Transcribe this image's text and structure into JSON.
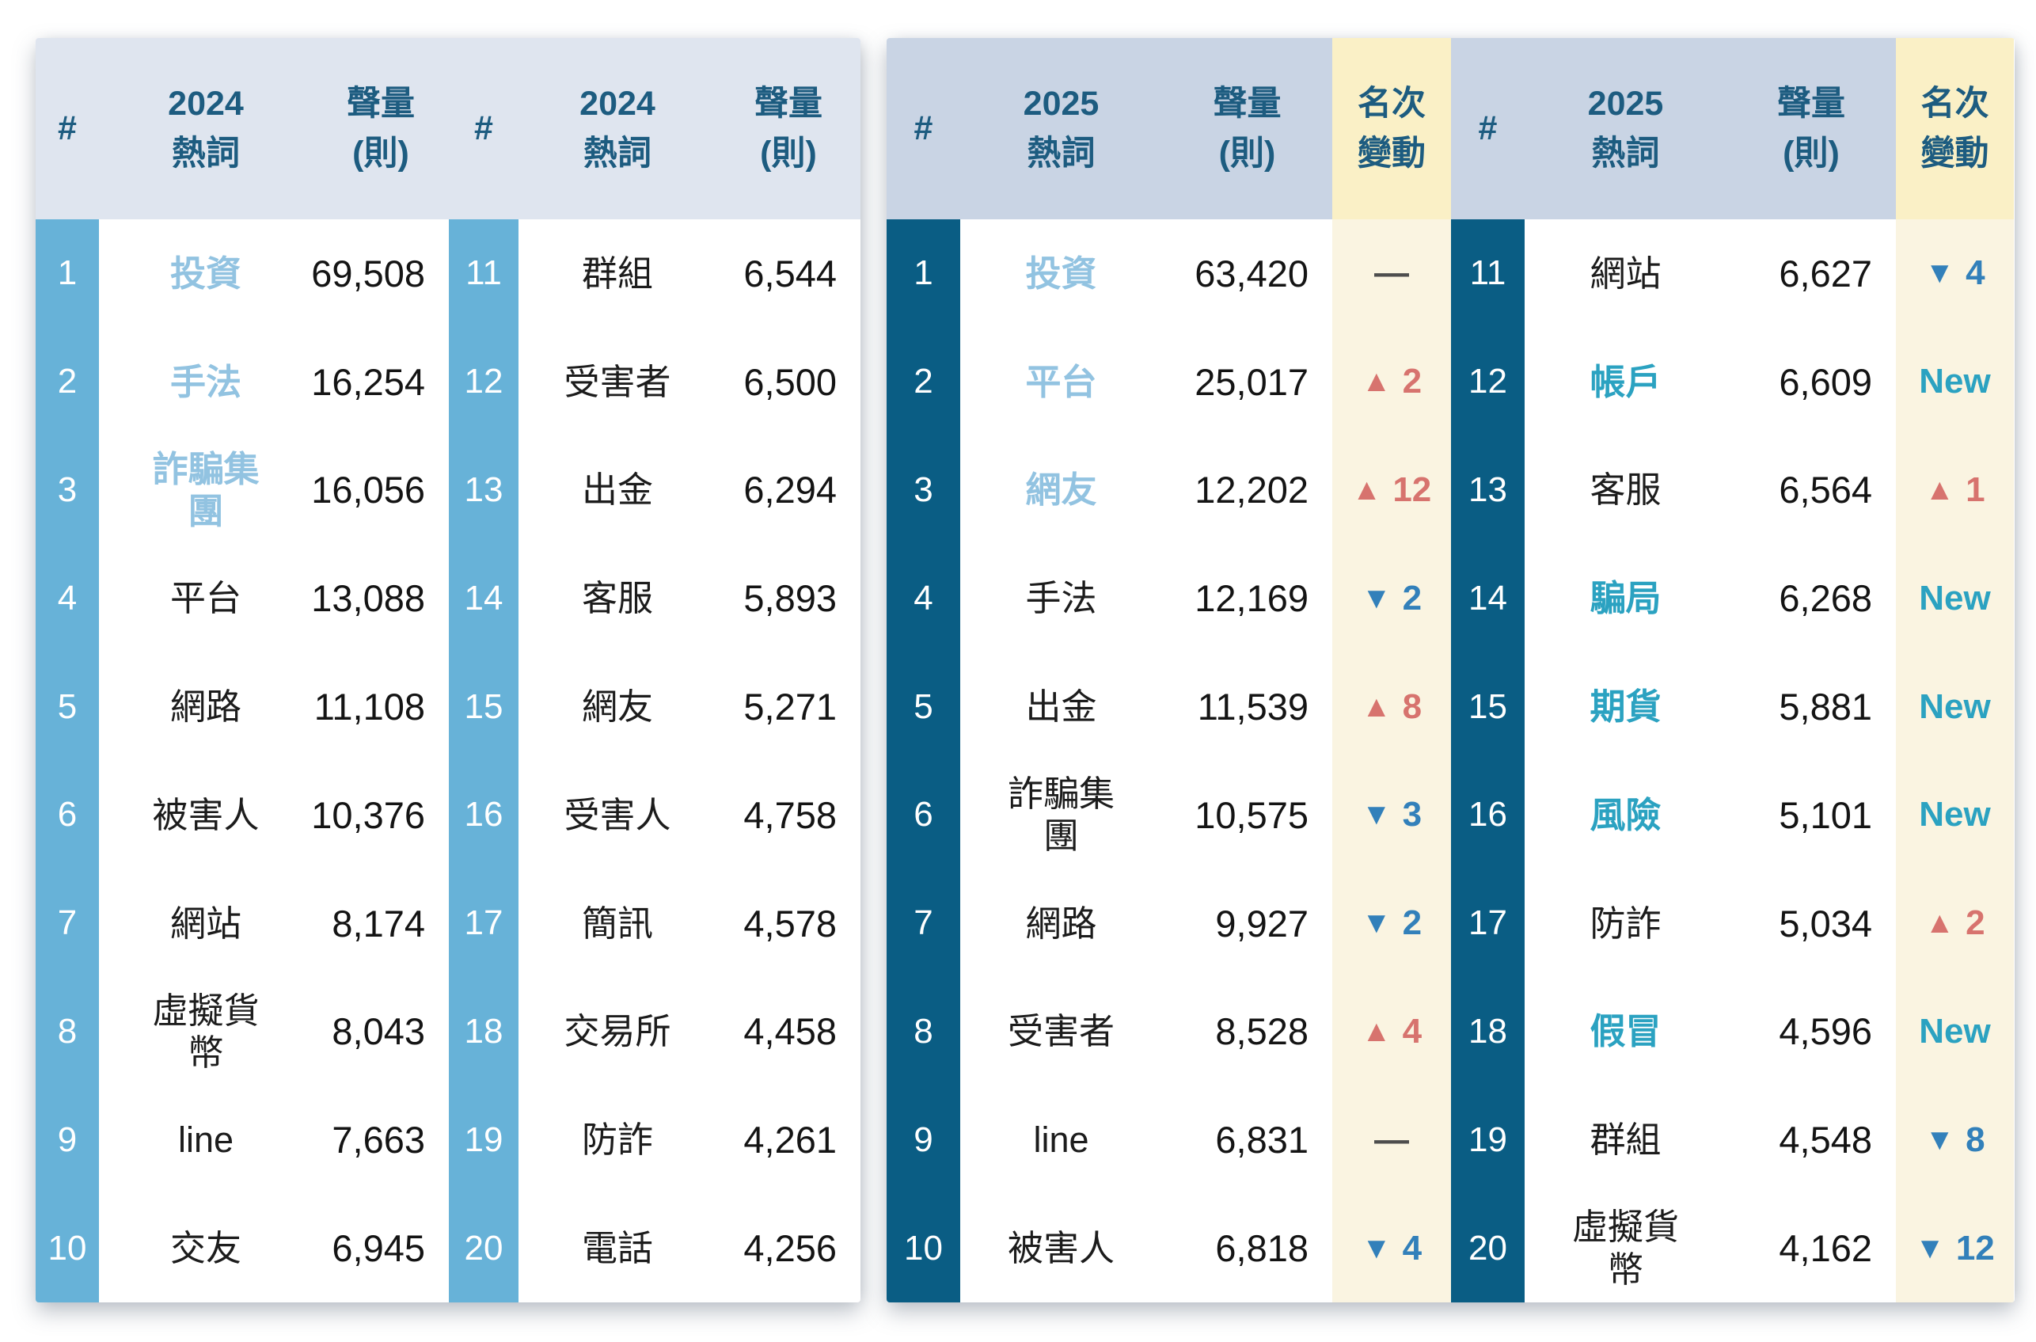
{
  "tables": {
    "left": {
      "header": {
        "rank": "#",
        "word": "2024\n熱詞",
        "volume": "聲量\n(則)"
      },
      "rows_a": [
        {
          "rank": 1,
          "word": "投資",
          "volume": "69,508",
          "hl": "hl-blue"
        },
        {
          "rank": 2,
          "word": "手法",
          "volume": "16,254",
          "hl": "hl-blue"
        },
        {
          "rank": 3,
          "word": "詐騙集團",
          "volume": "16,056",
          "hl": "hl-blue"
        },
        {
          "rank": 4,
          "word": "平台",
          "volume": "13,088"
        },
        {
          "rank": 5,
          "word": "網路",
          "volume": "11,108"
        },
        {
          "rank": 6,
          "word": "被害人",
          "volume": "10,376"
        },
        {
          "rank": 7,
          "word": "網站",
          "volume": "8,174"
        },
        {
          "rank": 8,
          "word": "虛擬貨幣",
          "volume": "8,043"
        },
        {
          "rank": 9,
          "word": "line",
          "volume": "7,663"
        },
        {
          "rank": 10,
          "word": "交友",
          "volume": "6,945"
        }
      ],
      "rows_b": [
        {
          "rank": 11,
          "word": "群組",
          "volume": "6,544"
        },
        {
          "rank": 12,
          "word": "受害者",
          "volume": "6,500"
        },
        {
          "rank": 13,
          "word": "出金",
          "volume": "6,294"
        },
        {
          "rank": 14,
          "word": "客服",
          "volume": "5,893"
        },
        {
          "rank": 15,
          "word": "網友",
          "volume": "5,271"
        },
        {
          "rank": 16,
          "word": "受害人",
          "volume": "4,758"
        },
        {
          "rank": 17,
          "word": "簡訊",
          "volume": "4,578"
        },
        {
          "rank": 18,
          "word": "交易所",
          "volume": "4,458"
        },
        {
          "rank": 19,
          "word": "防詐",
          "volume": "4,261"
        },
        {
          "rank": 20,
          "word": "電話",
          "volume": "4,256"
        }
      ]
    },
    "right": {
      "header": {
        "rank": "#",
        "word": "2025\n熱詞",
        "volume": "聲量\n(則)",
        "change": "名次\n變動"
      },
      "rows_a": [
        {
          "rank": 1,
          "word": "投資",
          "volume": "63,420",
          "hl": "hl-blue",
          "change": {
            "dir": "same",
            "text": "—"
          }
        },
        {
          "rank": 2,
          "word": "平台",
          "volume": "25,017",
          "hl": "hl-blue",
          "change": {
            "dir": "up",
            "arrow": "▲",
            "text": "2"
          }
        },
        {
          "rank": 3,
          "word": "網友",
          "volume": "12,202",
          "hl": "hl-blue",
          "change": {
            "dir": "up",
            "arrow": "▲",
            "text": "12"
          }
        },
        {
          "rank": 4,
          "word": "手法",
          "volume": "12,169",
          "change": {
            "dir": "down",
            "arrow": "▼",
            "text": "2"
          }
        },
        {
          "rank": 5,
          "word": "出金",
          "volume": "11,539",
          "change": {
            "dir": "up",
            "arrow": "▲",
            "text": "8"
          }
        },
        {
          "rank": 6,
          "word": "詐騙集團",
          "volume": "10,575",
          "change": {
            "dir": "down",
            "arrow": "▼",
            "text": "3"
          }
        },
        {
          "rank": 7,
          "word": "網路",
          "volume": "9,927",
          "change": {
            "dir": "down",
            "arrow": "▼",
            "text": "2"
          }
        },
        {
          "rank": 8,
          "word": "受害者",
          "volume": "8,528",
          "change": {
            "dir": "up",
            "arrow": "▲",
            "text": "4"
          }
        },
        {
          "rank": 9,
          "word": "line",
          "volume": "6,831",
          "change": {
            "dir": "same",
            "text": "—"
          }
        },
        {
          "rank": 10,
          "word": "被害人",
          "volume": "6,818",
          "change": {
            "dir": "down",
            "arrow": "▼",
            "text": "4"
          }
        }
      ],
      "rows_b": [
        {
          "rank": 11,
          "word": "網站",
          "volume": "6,627",
          "change": {
            "dir": "down",
            "arrow": "▼",
            "text": "4"
          }
        },
        {
          "rank": 12,
          "word": "帳戶",
          "volume": "6,609",
          "hl": "hl-teal",
          "change": {
            "dir": "new",
            "text": "New"
          }
        },
        {
          "rank": 13,
          "word": "客服",
          "volume": "6,564",
          "change": {
            "dir": "up",
            "arrow": "▲",
            "text": "1"
          }
        },
        {
          "rank": 14,
          "word": "騙局",
          "volume": "6,268",
          "hl": "hl-teal",
          "change": {
            "dir": "new",
            "text": "New"
          }
        },
        {
          "rank": 15,
          "word": "期貨",
          "volume": "5,881",
          "hl": "hl-teal",
          "change": {
            "dir": "new",
            "text": "New"
          }
        },
        {
          "rank": 16,
          "word": "風險",
          "volume": "5,101",
          "hl": "hl-teal",
          "change": {
            "dir": "new",
            "text": "New"
          }
        },
        {
          "rank": 17,
          "word": "防詐",
          "volume": "5,034",
          "change": {
            "dir": "up",
            "arrow": "▲",
            "text": "2"
          }
        },
        {
          "rank": 18,
          "word": "假冒",
          "volume": "4,596",
          "hl": "hl-teal",
          "change": {
            "dir": "new",
            "text": "New"
          }
        },
        {
          "rank": 19,
          "word": "群組",
          "volume": "4,548",
          "change": {
            "dir": "down",
            "arrow": "▼",
            "text": "8"
          }
        },
        {
          "rank": 20,
          "word": "虛擬貨幣",
          "volume": "4,162",
          "change": {
            "dir": "down",
            "arrow": "▼",
            "text": "12"
          }
        }
      ]
    }
  },
  "symbols": {
    "up_arrow": "▲",
    "down_arrow": "▼",
    "new_label": "New",
    "no_change": "—"
  },
  "colors": {
    "left_header_bg": "#DFE5EF",
    "right_header_bg": "#C9D4E4",
    "change_header_bg": "#FAF0C6",
    "change_body_bg": "#FAF4E1",
    "left_rank_bg": "#67B2D8",
    "right_rank_bg": "#0A5D84",
    "header_text": "#1D5C80",
    "highlight_blue": "#92C3E1",
    "highlight_teal": "#2BA2C1",
    "up": "#D7736E",
    "down": "#3280BA",
    "no_change_text": "#4D4D4D"
  },
  "chart_data": [
    {
      "type": "table",
      "columns": [
        "#",
        "2024 熱詞",
        "聲量(則)"
      ],
      "rows": [
        [
          1,
          "投資",
          69508
        ],
        [
          2,
          "手法",
          16254
        ],
        [
          3,
          "詐騙集團",
          16056
        ],
        [
          4,
          "平台",
          13088
        ],
        [
          5,
          "網路",
          11108
        ],
        [
          6,
          "被害人",
          10376
        ],
        [
          7,
          "網站",
          8174
        ],
        [
          8,
          "虛擬貨幣",
          8043
        ],
        [
          9,
          "line",
          7663
        ],
        [
          10,
          "交友",
          6945
        ],
        [
          11,
          "群組",
          6544
        ],
        [
          12,
          "受害者",
          6500
        ],
        [
          13,
          "出金",
          6294
        ],
        [
          14,
          "客服",
          5893
        ],
        [
          15,
          "網友",
          5271
        ],
        [
          16,
          "受害人",
          4758
        ],
        [
          17,
          "簡訊",
          4578
        ],
        [
          18,
          "交易所",
          4458
        ],
        [
          19,
          "防詐",
          4261
        ],
        [
          20,
          "電話",
          4256
        ]
      ]
    },
    {
      "type": "table",
      "columns": [
        "#",
        "2025 熱詞",
        "聲量(則)",
        "名次變動"
      ],
      "rows": [
        [
          1,
          "投資",
          63420,
          "—"
        ],
        [
          2,
          "平台",
          25017,
          "▲2"
        ],
        [
          3,
          "網友",
          12202,
          "▲12"
        ],
        [
          4,
          "手法",
          12169,
          "▼2"
        ],
        [
          5,
          "出金",
          11539,
          "▲8"
        ],
        [
          6,
          "詐騙集團",
          10575,
          "▼3"
        ],
        [
          7,
          "網路",
          9927,
          "▼2"
        ],
        [
          8,
          "受害者",
          8528,
          "▲4"
        ],
        [
          9,
          "line",
          6831,
          "—"
        ],
        [
          10,
          "被害人",
          6818,
          "▼4"
        ],
        [
          11,
          "網站",
          6627,
          "▼4"
        ],
        [
          12,
          "帳戶",
          6609,
          "New"
        ],
        [
          13,
          "客服",
          6564,
          "▲1"
        ],
        [
          14,
          "騙局",
          6268,
          "New"
        ],
        [
          15,
          "期貨",
          5881,
          "New"
        ],
        [
          16,
          "風險",
          5101,
          "New"
        ],
        [
          17,
          "防詐",
          5034,
          "▲2"
        ],
        [
          18,
          "假冒",
          4596,
          "New"
        ],
        [
          19,
          "群組",
          4548,
          "▼8"
        ],
        [
          20,
          "虛擬貨幣",
          4162,
          "▼12"
        ]
      ]
    }
  ]
}
